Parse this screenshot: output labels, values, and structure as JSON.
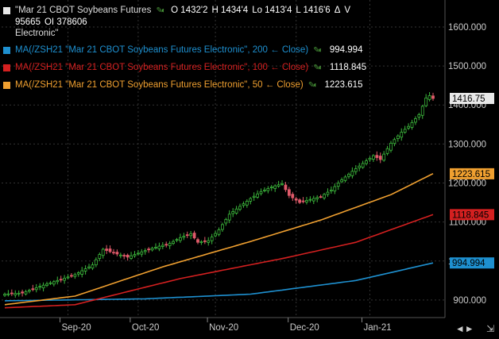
{
  "legend": {
    "main_label": "\"Mar 21 CBOT Soybeans Futures",
    "main_label2": "Electronic\"",
    "ohlc": {
      "o": "O 1432'2",
      "h": "H 1434'4",
      "lo": "Lo 1413'4",
      "l": "L 1416'6",
      "delta": "Δ",
      "v": "V 95665",
      "oi": "OI 378606"
    },
    "ma200": {
      "label": "MA(/ZSH21 \"Mar 21 CBOT Soybeans Futures Electronic\", 200 ← Close)",
      "value": "994.994",
      "color": "#1e90d0"
    },
    "ma100": {
      "label": "MA(/ZSH21 \"Mar 21 CBOT Soybeans Futures Electronic\", 100 ← Close)",
      "value": "1118.845",
      "color": "#d42020"
    },
    "ma50": {
      "label": "MA(/ZSH21 \"Mar 21 CBOT Soybeans Futures Electronic\", 50 ← Close)",
      "value": "1223.615",
      "color": "#f0a030"
    }
  },
  "chart_data": {
    "type": "candlestick",
    "x_labels": [
      "Sep-20",
      "Oct-20",
      "Nov-20",
      "Dec-20",
      "Jan-21"
    ],
    "y_ticks": [
      900,
      1000,
      1100,
      1200,
      1300,
      1400,
      1500,
      1600
    ],
    "y_tick_labels": [
      "900.000",
      "1000.000",
      "1100.000",
      "1200.000",
      "1300.000",
      "1400.000",
      "1500.000",
      "1600.000"
    ],
    "ylim": [
      855,
      1665
    ],
    "price_tags": [
      {
        "value": 1416.75,
        "label": "1416.75",
        "bg": "#e8e8e8",
        "fg": "#000"
      },
      {
        "value": 1223.615,
        "label": "1223.615",
        "bg": "#f0a030",
        "fg": "#000"
      },
      {
        "value": 1118.845,
        "label": "1118.845",
        "bg": "#d42020",
        "fg": "#000"
      },
      {
        "value": 994.994,
        "label": "994.994",
        "bg": "#1e90d0",
        "fg": "#000"
      }
    ],
    "close_anchors": [
      [
        0,
        915
      ],
      [
        5,
        918
      ],
      [
        10,
        935
      ],
      [
        15,
        950
      ],
      [
        20,
        965
      ],
      [
        25,
        990
      ],
      [
        28,
        1030
      ],
      [
        32,
        1018
      ],
      [
        35,
        1010
      ],
      [
        38,
        1020
      ],
      [
        41,
        1030
      ],
      [
        44,
        1038
      ],
      [
        47,
        1045
      ],
      [
        50,
        1060
      ],
      [
        53,
        1070
      ],
      [
        55,
        1048
      ],
      [
        58,
        1052
      ],
      [
        61,
        1080
      ],
      [
        64,
        1120
      ],
      [
        67,
        1140
      ],
      [
        70,
        1160
      ],
      [
        73,
        1178
      ],
      [
        76,
        1190
      ],
      [
        79,
        1198
      ],
      [
        81,
        1168
      ],
      [
        84,
        1150
      ],
      [
        87,
        1158
      ],
      [
        90,
        1165
      ],
      [
        93,
        1182
      ],
      [
        96,
        1208
      ],
      [
        99,
        1230
      ],
      [
        102,
        1250
      ],
      [
        105,
        1270
      ],
      [
        107,
        1260
      ],
      [
        110,
        1302
      ],
      [
        113,
        1330
      ],
      [
        115,
        1345
      ],
      [
        118,
        1375
      ],
      [
        120,
        1418
      ],
      [
        121,
        1424
      ],
      [
        122,
        1416.75
      ]
    ],
    "candle_count": 123,
    "ma200_anchors": [
      [
        0,
        898
      ],
      [
        40,
        903
      ],
      [
        70,
        915
      ],
      [
        100,
        950
      ],
      [
        122,
        995
      ]
    ],
    "ma100_anchors": [
      [
        0,
        880
      ],
      [
        20,
        888
      ],
      [
        50,
        955
      ],
      [
        80,
        1008
      ],
      [
        100,
        1048
      ],
      [
        122,
        1119
      ]
    ],
    "ma50_anchors": [
      [
        0,
        888
      ],
      [
        20,
        910
      ],
      [
        45,
        985
      ],
      [
        70,
        1050
      ],
      [
        90,
        1105
      ],
      [
        110,
        1170
      ],
      [
        122,
        1224
      ]
    ],
    "colors": {
      "up": "#3cb83c",
      "down": "#e05a6a",
      "grid": "#333333",
      "axis_text": "#cccccc"
    }
  },
  "toolbar": {
    "scroll_icon": "⇲",
    "arrows": "◄►"
  }
}
